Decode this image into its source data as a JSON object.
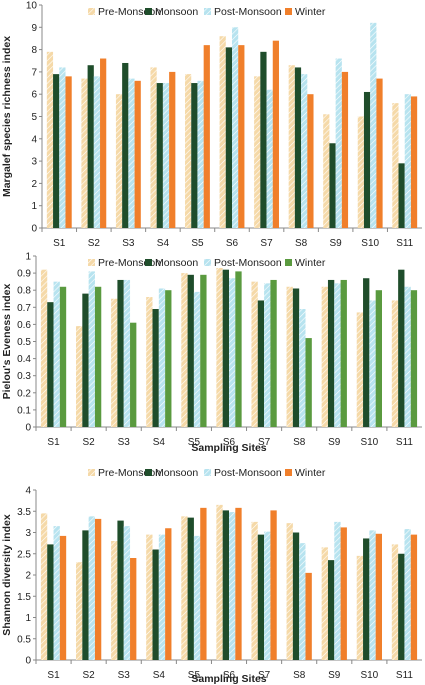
{
  "colors": {
    "Pre-Monsoon": "#f5d9a8",
    "Monsoon": "#1f4d2b",
    "Post-Monsoon": "#b7e3ef",
    "Winter": "#f07f2b",
    "Winter_green": "#5a9a3f"
  },
  "chart_data": [
    {
      "type": "bar",
      "title": "",
      "xlabel": "",
      "ylabel": "Margalef species  richness index",
      "categories": [
        "S1",
        "S2",
        "S3",
        "S4",
        "S5",
        "S6",
        "S7",
        "S8",
        "S9",
        "S10",
        "S11"
      ],
      "ylim": [
        0,
        10
      ],
      "yticks": [
        0,
        1,
        2,
        3,
        4,
        5,
        6,
        7,
        8,
        9,
        10
      ],
      "grid": false,
      "legend": "top",
      "series": [
        {
          "name": "Pre-Monsoon",
          "color_key": "Pre-Monsoon",
          "values": [
            7.9,
            6.7,
            6.0,
            7.2,
            6.9,
            8.6,
            6.8,
            7.3,
            5.1,
            5.0,
            5.6
          ]
        },
        {
          "name": "Monsoon",
          "color_key": "Monsoon",
          "values": [
            6.9,
            7.3,
            7.4,
            6.5,
            6.5,
            8.1,
            7.9,
            7.2,
            3.8,
            6.1,
            2.9
          ]
        },
        {
          "name": "Post-Monsoon",
          "color_key": "Post-Monsoon",
          "values": [
            7.2,
            6.8,
            6.7,
            6.5,
            6.6,
            9.0,
            6.2,
            6.9,
            7.6,
            9.2,
            6.0
          ]
        },
        {
          "name": "Winter",
          "color_key": "Winter",
          "values": [
            6.8,
            7.6,
            6.6,
            7.0,
            8.2,
            8.2,
            8.4,
            6.0,
            7.0,
            6.7,
            5.9
          ]
        }
      ]
    },
    {
      "type": "bar",
      "title": "",
      "xlabel": "Sampling Sites",
      "ylabel": "Pielou's Eveness index",
      "categories": [
        "S1",
        "S2",
        "S3",
        "S4",
        "S5",
        "S6",
        "S7",
        "S8",
        "S9",
        "S10",
        "S11"
      ],
      "ylim": [
        0,
        1
      ],
      "yticks": [
        0,
        0.1,
        0.2,
        0.3,
        0.4,
        0.5,
        0.6,
        0.7,
        0.8,
        0.9,
        1
      ],
      "grid": false,
      "legend": "top",
      "series": [
        {
          "name": "Pre-Monsoon",
          "color_key": "Pre-Monsoon",
          "values": [
            0.92,
            0.59,
            0.75,
            0.76,
            0.9,
            0.93,
            0.85,
            0.82,
            0.82,
            0.67,
            0.74
          ]
        },
        {
          "name": "Monsoon",
          "color_key": "Monsoon",
          "values": [
            0.73,
            0.78,
            0.86,
            0.69,
            0.89,
            0.92,
            0.74,
            0.81,
            0.86,
            0.87,
            0.92
          ]
        },
        {
          "name": "Post-Monsoon",
          "color_key": "Post-Monsoon",
          "values": [
            0.85,
            0.91,
            0.86,
            0.81,
            0.79,
            0.87,
            0.84,
            0.69,
            0.84,
            0.74,
            0.82
          ]
        },
        {
          "name": "Winter",
          "color_key": "Winter_green",
          "values": [
            0.82,
            0.82,
            0.61,
            0.8,
            0.89,
            0.91,
            0.86,
            0.52,
            0.86,
            0.8,
            0.8
          ]
        }
      ]
    },
    {
      "type": "bar",
      "title": "",
      "xlabel": "Sampling Sites",
      "ylabel": "Shannon diversity index",
      "categories": [
        "S1",
        "S2",
        "S3",
        "S4",
        "S5",
        "S6",
        "S7",
        "S8",
        "S9",
        "S10",
        "S11"
      ],
      "ylim": [
        0,
        4
      ],
      "yticks": [
        0,
        0.5,
        1,
        1.5,
        2,
        2.5,
        3,
        3.5,
        4
      ],
      "grid": false,
      "legend": "top",
      "series": [
        {
          "name": "Pre-Monsoon",
          "color_key": "Pre-Monsoon",
          "values": [
            3.45,
            2.3,
            2.8,
            2.95,
            3.38,
            3.65,
            3.25,
            3.22,
            2.65,
            2.45,
            2.72
          ]
        },
        {
          "name": "Monsoon",
          "color_key": "Monsoon",
          "values": [
            2.72,
            3.05,
            3.28,
            2.6,
            3.35,
            3.52,
            2.95,
            3.0,
            2.35,
            2.86,
            2.5
          ]
        },
        {
          "name": "Post-Monsoon",
          "color_key": "Post-Monsoon",
          "values": [
            3.15,
            3.38,
            3.15,
            2.95,
            2.92,
            3.48,
            3.02,
            2.75,
            3.25,
            3.05,
            3.08
          ]
        },
        {
          "name": "Winter",
          "color_key": "Winter",
          "values": [
            2.92,
            3.32,
            2.4,
            3.1,
            3.58,
            3.58,
            3.52,
            2.05,
            3.12,
            2.97,
            2.95
          ]
        }
      ]
    }
  ]
}
